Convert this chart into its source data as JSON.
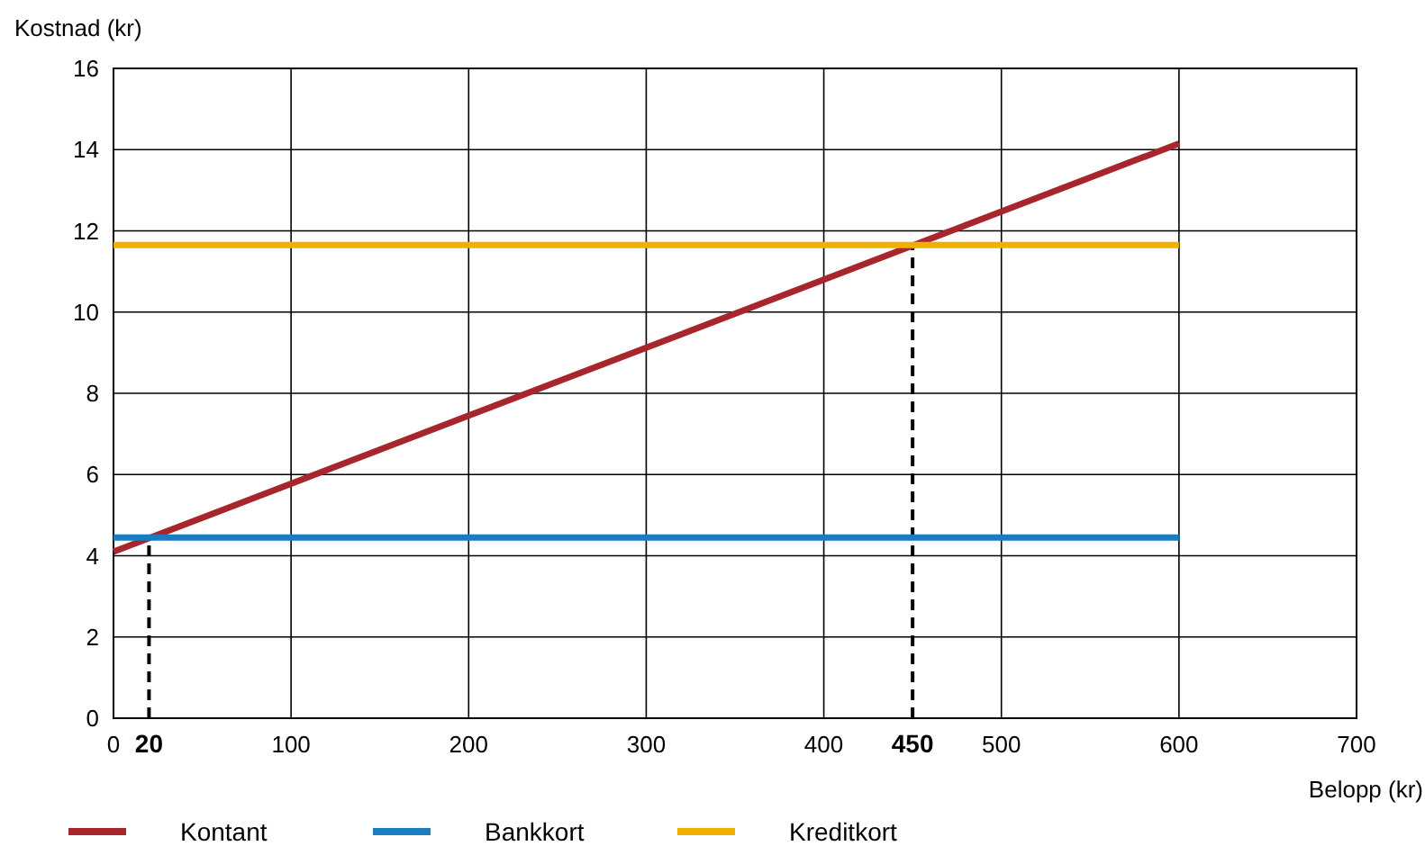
{
  "chart_data": {
    "type": "line",
    "xlabel": "Belopp (kr)",
    "ylabel": "Kostnad (kr)",
    "xlim": [
      0,
      700
    ],
    "xticks": [
      0,
      100,
      200,
      300,
      400,
      500,
      600,
      700
    ],
    "ylim": [
      0,
      16
    ],
    "yticks": [
      0,
      2,
      4,
      6,
      8,
      10,
      12,
      14,
      16
    ],
    "x": [
      0,
      600
    ],
    "grid": true,
    "legend": "bottom",
    "marker": "none",
    "line_style": "solid",
    "series": [
      {
        "name": "Kontant",
        "color": "#a6262b",
        "values": [
          4.1,
          14.15
        ]
      },
      {
        "name": "Bankkort",
        "color": "#1a7dc0",
        "values": [
          4.45,
          4.45
        ]
      },
      {
        "name": "Kreditkort",
        "color": "#f0b000",
        "values": [
          11.65,
          11.65
        ]
      }
    ],
    "ref_lines": [
      {
        "axis": "x",
        "value": 20,
        "label": "20",
        "color": "#000000",
        "line_style": "dashed"
      },
      {
        "axis": "x",
        "value": 450,
        "label": "450",
        "color": "#000000",
        "line_style": "dashed"
      }
    ]
  }
}
